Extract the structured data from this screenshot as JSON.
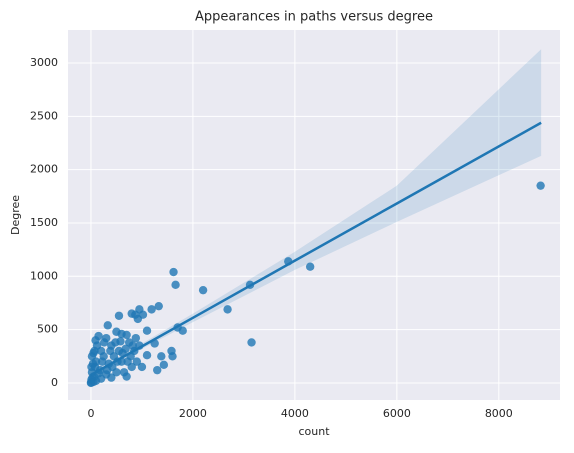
{
  "chart_data": {
    "type": "scatter",
    "title": "Appearances in paths versus degree",
    "x_label": "count",
    "y_label": "Degree",
    "color": "#1f77b4",
    "grid": true,
    "xlim": [
      -450,
      9200
    ],
    "ylim": [
      -160,
      3310
    ],
    "xticks": [
      0,
      2000,
      4000,
      6000,
      8000
    ],
    "yticks": [
      0,
      500,
      1000,
      1500,
      2000,
      2500,
      3000
    ],
    "x": [
      8820,
      4300,
      3870,
      3120,
      3150,
      2680,
      2200,
      1620,
      1660,
      1580,
      1600,
      1700,
      1800,
      1330,
      1190,
      1380,
      1430,
      1300,
      1250,
      1100,
      1100,
      1020,
      950,
      920,
      870,
      800,
      550,
      330,
      500,
      600,
      700,
      750,
      850,
      900,
      650,
      700,
      400,
      300,
      200,
      100,
      150,
      50,
      20,
      10,
      30,
      80,
      250,
      350,
      450,
      550,
      600,
      500,
      300,
      200,
      100,
      50,
      400,
      800,
      950,
      1000,
      120,
      60,
      180,
      260,
      380,
      480,
      580,
      680,
      780,
      880,
      20,
      40,
      70,
      0,
      5,
      150,
      220,
      320,
      420,
      520,
      620,
      720,
      820,
      90,
      10
    ],
    "y": [
      1850,
      1090,
      1140,
      920,
      380,
      690,
      870,
      1040,
      920,
      300,
      250,
      520,
      490,
      720,
      690,
      250,
      170,
      120,
      370,
      490,
      260,
      640,
      690,
      600,
      640,
      650,
      630,
      540,
      480,
      460,
      450,
      380,
      300,
      200,
      100,
      60,
      350,
      420,
      300,
      200,
      440,
      280,
      100,
      30,
      50,
      150,
      250,
      180,
      250,
      300,
      200,
      100,
      80,
      40,
      20,
      10,
      50,
      150,
      350,
      150,
      350,
      60,
      120,
      380,
      300,
      380,
      390,
      320,
      250,
      420,
      250,
      180,
      300,
      0,
      5,
      90,
      200,
      120,
      150,
      200,
      280,
      200,
      350,
      400,
      150
    ],
    "regression": {
      "x": [
        0,
        1000,
        2000,
        4000,
        6000,
        8830
      ],
      "y": [
        75,
        343,
        611,
        1147,
        1683,
        2440
      ],
      "ci_upper": [
        100,
        370,
        650,
        1230,
        1850,
        3130
      ],
      "ci_lower": [
        50,
        320,
        570,
        1060,
        1510,
        2130
      ]
    }
  }
}
